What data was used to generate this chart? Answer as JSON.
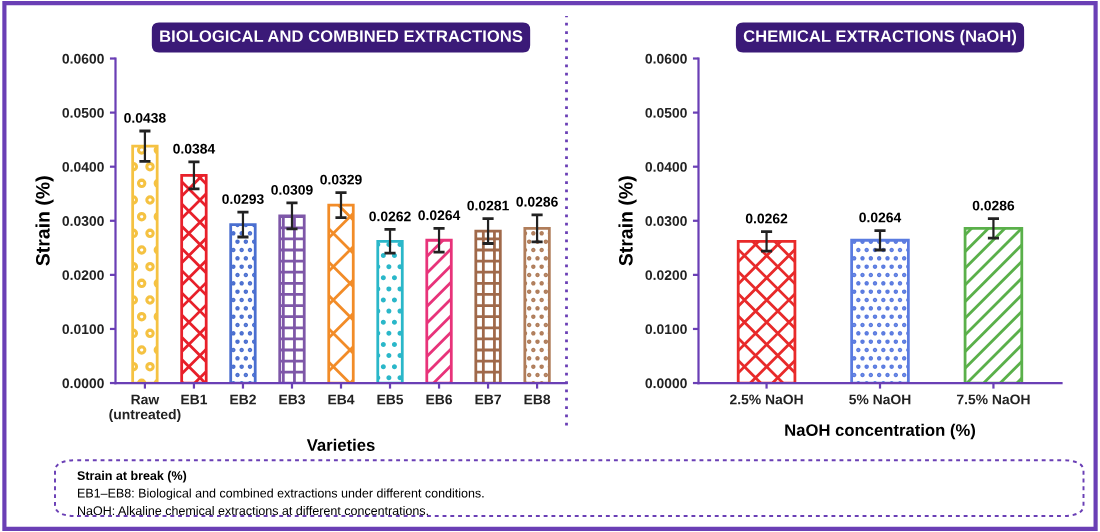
{
  "chart_data": [
    {
      "type": "bar",
      "title": "BIOLOGICAL AND COMBINED EXTRACTIONS",
      "xlabel": "Varieties",
      "ylabel": "Strain (%)",
      "categories": [
        "Raw\n(untreated)",
        "EB1",
        "EB2",
        "EB3",
        "EB4",
        "EB5",
        "EB6",
        "EB7",
        "EB8"
      ],
      "values": [
        0.0438,
        0.0384,
        0.0293,
        0.0309,
        0.0329,
        0.0262,
        0.0264,
        0.0281,
        0.0286
      ],
      "value_labels": [
        "0.0438",
        "0.0384",
        "0.0293",
        "0.0309",
        "0.0329",
        "0.0262",
        "0.0264",
        "0.0281",
        "0.0286"
      ],
      "errors": [
        0.0028,
        0.0025,
        0.0023,
        0.0024,
        0.0023,
        0.0022,
        0.0022,
        0.0023,
        0.0025
      ],
      "colors": [
        "#f5c242",
        "#e8202a",
        "#4a6fd0",
        "#7e57a8",
        "#f28c28",
        "#2ab7c9",
        "#e8337a",
        "#a0694a",
        "#b07d5a"
      ],
      "ylim": [
        0,
        0.06
      ],
      "yticks": [
        {
          "value": 0,
          "label": "0.0000"
        },
        {
          "value": 0.01,
          "label": "0.0100"
        },
        {
          "value": 0.02,
          "label": "0.0200"
        },
        {
          "value": 0.03,
          "label": "0.0300"
        },
        {
          "value": 0.04,
          "label": "0.0400"
        },
        {
          "value": 0.05,
          "label": "0.0500"
        },
        {
          "value": 0.06,
          "label": "0.0600"
        }
      ],
      "grid": false,
      "legend": false,
      "annotations": [
        "Strain at break (%)",
        "EB1–EB8: Biological and combined extractions under different conditions.",
        "NaOH: Alkaline chemical extractions at different concentrations."
      ]
    },
    {
      "type": "bar",
      "title": "CHEMICAL EXTRACTIONS (NaOH)",
      "xlabel": "NaOH concentration (%)",
      "ylabel": "Strain (%)",
      "categories": [
        "2.5% NaOH",
        "5% NaOH",
        "7.5% NaOH"
      ],
      "values": [
        0.0262,
        0.0264,
        0.0286
      ],
      "value_labels": [
        "0.0262",
        "0.0264",
        "0.0286"
      ],
      "errors": [
        0.0018,
        0.0018,
        0.0018
      ],
      "colors": [
        "#e82a2a",
        "#5a7be0",
        "#5ab04a"
      ],
      "ylim": [
        0,
        0.06
      ],
      "yticks": [
        {
          "value": 0,
          "label": "0.0000"
        },
        {
          "value": 0.01,
          "label": "0.0100"
        },
        {
          "value": 0.02,
          "label": "0.0200"
        },
        {
          "value": 0.03,
          "label": "0.0300"
        },
        {
          "value": 0.04,
          "label": "0.0400"
        },
        {
          "value": 0.05,
          "label": "0.0500"
        },
        {
          "value": 0.06,
          "label": "0.0600"
        }
      ],
      "grid": false,
      "legend": false
    }
  ]
}
